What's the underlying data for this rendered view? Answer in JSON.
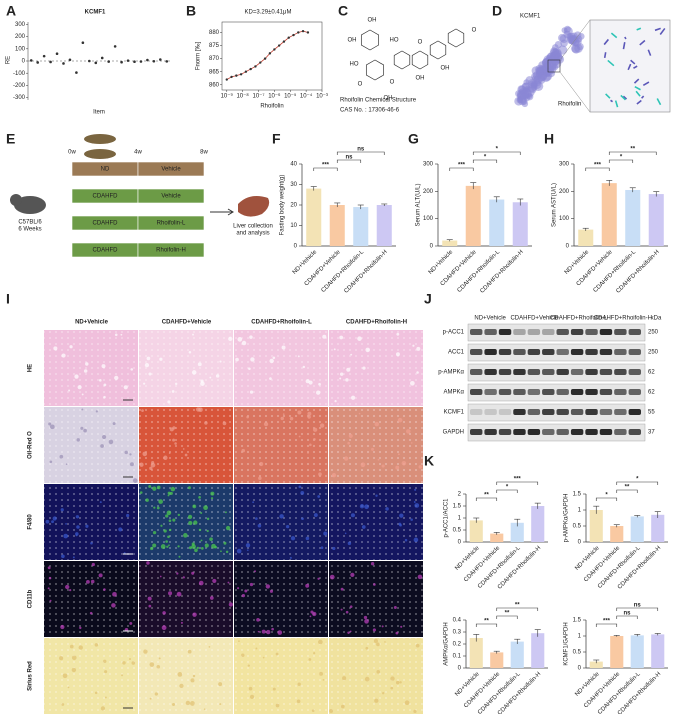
{
  "panel_a": {
    "letter": "A",
    "type": "scatter",
    "title": "KCMF1",
    "xlabel": "Item",
    "ylabel": "RE",
    "values": [
      5,
      -12,
      40,
      -8,
      60,
      -20,
      10,
      -95,
      150,
      0,
      -15,
      25,
      -5,
      120,
      -10,
      3,
      -6,
      -4,
      8,
      -2,
      12,
      -3
    ],
    "color": "#333333",
    "ylim": [
      -320,
      320
    ],
    "yticks": [
      -300,
      -200,
      -100,
      0,
      100,
      200,
      300
    ]
  },
  "panel_b": {
    "letter": "B",
    "type": "scatter",
    "title": "KD=3.29±0.41μM",
    "xlabel": "Rhoifolin",
    "ylabel": "Fnorm [‰]",
    "x": [
      1e-09,
      2e-09,
      4e-09,
      8e-09,
      1.6e-08,
      3.2e-08,
      6.4e-08,
      1.3e-07,
      2.6e-07,
      5.2e-07,
      1e-06,
      2e-06,
      4e-06,
      8e-06,
      1.6e-05,
      3.2e-05,
      6.4e-05,
      0.00013
    ],
    "values": [
      862,
      863,
      863.5,
      864,
      865,
      866,
      867,
      868.5,
      870,
      872,
      873.5,
      875,
      876.5,
      878,
      879,
      880,
      880.5,
      880
    ],
    "color": "#c0392b",
    "xscale": "log",
    "xlim": [
      5e-10,
      0.001
    ],
    "xticks": [
      {
        "value": 1e-09,
        "label": "10⁻⁹"
      },
      {
        "value": 1e-08,
        "label": "10⁻⁸"
      },
      {
        "value": 1e-07,
        "label": "10⁻⁷"
      },
      {
        "value": 1e-06,
        "label": "10⁻⁶"
      },
      {
        "value": 1e-05,
        "label": "10⁻⁵"
      },
      {
        "value": 0.0001,
        "label": "10⁻⁴"
      },
      {
        "value": 0.001,
        "label": "10⁻³"
      }
    ],
    "ylim": [
      858,
      884
    ],
    "yticks": [
      860,
      865,
      870,
      875,
      880
    ]
  },
  "panel_c": {
    "letter": "C",
    "caption": [
      "Rhoifolin Chemical Structure",
      "CAS No. : 17306-46-6"
    ],
    "atoms": [
      "OH",
      "OH",
      "HO",
      "O",
      "O",
      "HO",
      "OH",
      "O",
      "OH",
      "O",
      "OH"
    ]
  },
  "panel_d": {
    "letter": "D",
    "protein": "KCMF1",
    "ligand": "Rhoifolin"
  },
  "panel_e": {
    "letter": "E",
    "timepoints": [
      "0w",
      "4w",
      "8w"
    ],
    "mouse": [
      "C57BL/6",
      "6 Weeks"
    ],
    "rows": [
      {
        "diet": "ND",
        "treatment": "Vehicle"
      },
      {
        "diet": "CDAHFD",
        "treatment": "Vehicle"
      },
      {
        "diet": "CDAHFD",
        "treatment": "Rhoifolin-L"
      },
      {
        "diet": "CDAHFD",
        "treatment": "Rhoifolin-H"
      }
    ],
    "outcome": [
      "Liver collection",
      "and analysis"
    ]
  },
  "groups": [
    "ND+Vehicle",
    "CDAHFD+Vehicle",
    "CDAHFD+Rhoifolin-L",
    "CDAHFD+Rhoifolin-H"
  ],
  "group_colors": [
    "#f3e3b5",
    "#f9c9a2",
    "#c8def6",
    "#cdc8f3"
  ],
  "panel_f": {
    "letter": "F",
    "type": "bar",
    "ylabel": "Fasting body weight(g)",
    "values": [
      28,
      20,
      19,
      20
    ],
    "errors": [
      1,
      1,
      1,
      0.5
    ],
    "ylim": [
      0,
      40
    ],
    "yticks": [
      0,
      10,
      20,
      30,
      40
    ],
    "sig": [
      {
        "from": 0,
        "to": 1,
        "label": "***"
      },
      {
        "from": 1,
        "to": 2,
        "label": "ns"
      },
      {
        "from": 1,
        "to": 3,
        "label": "ns"
      }
    ]
  },
  "panel_g": {
    "letter": "G",
    "type": "bar",
    "ylabel": "Serum ALT(U/L)",
    "values": [
      20,
      220,
      170,
      160
    ],
    "errors": [
      3,
      12,
      10,
      12
    ],
    "ylim": [
      0,
      300
    ],
    "yticks": [
      0,
      100,
      200,
      300
    ],
    "sig": [
      {
        "from": 0,
        "to": 1,
        "label": "***"
      },
      {
        "from": 1,
        "to": 2,
        "label": "*"
      },
      {
        "from": 1,
        "to": 3,
        "label": "*"
      }
    ]
  },
  "panel_h": {
    "letter": "H",
    "type": "bar",
    "ylabel": "Serum AST(U/L)",
    "values": [
      60,
      230,
      205,
      190
    ],
    "errors": [
      5,
      10,
      8,
      9
    ],
    "ylim": [
      0,
      300
    ],
    "yticks": [
      0,
      100,
      200,
      300
    ],
    "sig": [
      {
        "from": 0,
        "to": 1,
        "label": "***"
      },
      {
        "from": 1,
        "to": 2,
        "label": "*"
      },
      {
        "from": 1,
        "to": 3,
        "label": "**"
      }
    ]
  },
  "panel_i": {
    "letter": "I",
    "columns": [
      "ND+Vehicle",
      "CDAHFD+Vehicle",
      "CDAHFD+Rhoifolin-L",
      "CDAHFD+Rhoifolin-H"
    ],
    "rows": [
      "HE",
      "Oil-Red O",
      "F4/80",
      "CD11b",
      "Sirius Red"
    ]
  },
  "panel_j": {
    "letter": "J",
    "groups": [
      "ND+Vehicle",
      "CDAHFD+Vehicle",
      "CDAHFD+Rhoifolin-L",
      "CDAHFD+Rhoifolin-H"
    ],
    "unit": "kDa",
    "proteins": [
      "p-ACC1",
      "ACC1",
      "p-AMPKα",
      "AMPKα",
      "KCMF1",
      "GAPDH"
    ],
    "sizes": [
      "250",
      "250",
      "62",
      "62",
      "55",
      "37"
    ]
  },
  "panel_k": {
    "letter": "K",
    "charts": [
      {
        "type": "bar",
        "ylabel": "p-ACC1/ACC1",
        "values": [
          0.9,
          0.35,
          0.8,
          1.5
        ],
        "errors": [
          0.1,
          0.05,
          0.15,
          0.12
        ],
        "ylim": [
          0,
          2
        ],
        "yticks": [
          0,
          0.5,
          1,
          1.5,
          2
        ],
        "sig": [
          {
            "from": 0,
            "to": 1,
            "label": "**"
          },
          {
            "from": 1,
            "to": 2,
            "label": "*"
          },
          {
            "from": 1,
            "to": 3,
            "label": "***"
          }
        ]
      },
      {
        "type": "bar",
        "ylabel": "p-AMPKα/GAPDH",
        "values": [
          1,
          0.5,
          0.8,
          0.85
        ],
        "errors": [
          0.12,
          0.04,
          0.03,
          0.1
        ],
        "ylim": [
          0,
          1.5
        ],
        "yticks": [
          0,
          0.5,
          1,
          1.5
        ],
        "sig": [
          {
            "from": 0,
            "to": 1,
            "label": "*"
          },
          {
            "from": 1,
            "to": 2,
            "label": "**"
          },
          {
            "from": 1,
            "to": 3,
            "label": "*"
          }
        ]
      },
      {
        "type": "bar",
        "ylabel": "AMPKα/GAPDH",
        "values": [
          0.25,
          0.13,
          0.22,
          0.29
        ],
        "errors": [
          0.03,
          0.01,
          0.02,
          0.03
        ],
        "ylim": [
          0,
          0.4
        ],
        "yticks": [
          0,
          0.1,
          0.2,
          0.3,
          0.4
        ],
        "sig": [
          {
            "from": 0,
            "to": 1,
            "label": "**"
          },
          {
            "from": 1,
            "to": 2,
            "label": "**"
          },
          {
            "from": 1,
            "to": 3,
            "label": "**"
          }
        ]
      },
      {
        "type": "bar",
        "ylabel": "KCMF1/GAPDH",
        "values": [
          0.2,
          1,
          1.02,
          1.05
        ],
        "errors": [
          0.05,
          0.02,
          0.03,
          0.03
        ],
        "ylim": [
          0,
          1.5
        ],
        "yticks": [
          0,
          0.5,
          1,
          1.5
        ],
        "sig": [
          {
            "from": 0,
            "to": 1,
            "label": "***"
          },
          {
            "from": 1,
            "to": 2,
            "label": "ns"
          },
          {
            "from": 1,
            "to": 3,
            "label": "ns"
          }
        ]
      }
    ]
  }
}
